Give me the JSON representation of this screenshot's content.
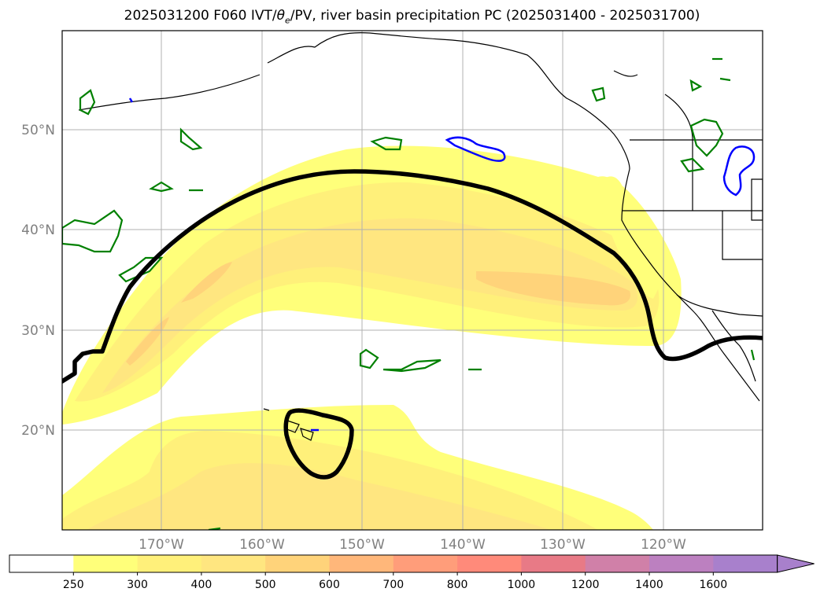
{
  "title": {
    "prefix": "2025031200 F060 IVT/",
    "theta": "θ",
    "theta_sub": "e",
    "suffix": "/PV, river basin precipitation PC (2025031400 - 2025031700)"
  },
  "map": {
    "projection": "cylindrical",
    "lon_range": [
      -180,
      -110
    ],
    "lat_range": [
      10,
      60
    ],
    "lon_labels": [
      "170°W",
      "160°W",
      "150°W",
      "140°W",
      "130°W",
      "120°W"
    ],
    "lat_labels": [
      "20°N",
      "30°N",
      "40°N",
      "50°N"
    ],
    "colors": {
      "ivt_contour": "#000000",
      "green_contour": "#008000",
      "blue_contour": "#0000ff",
      "gridlines": "#b0b0b0"
    }
  },
  "colorbar": {
    "levels": [
      250,
      300,
      400,
      500,
      600,
      700,
      800,
      1000,
      1200,
      1400,
      1600
    ],
    "labels": [
      "250",
      "300",
      "400",
      "500",
      "600",
      "700",
      "800",
      "1000",
      "1200",
      "1400",
      "1600"
    ],
    "colors": [
      "#ffffff",
      "#ffff7a",
      "#fff07a",
      "#ffe680",
      "#ffd37a",
      "#ffb77a",
      "#ff9d7a",
      "#ff8a7a",
      "#e87a86",
      "#d080a8",
      "#bc80c0",
      "#a880cc"
    ],
    "extend": "max"
  }
}
